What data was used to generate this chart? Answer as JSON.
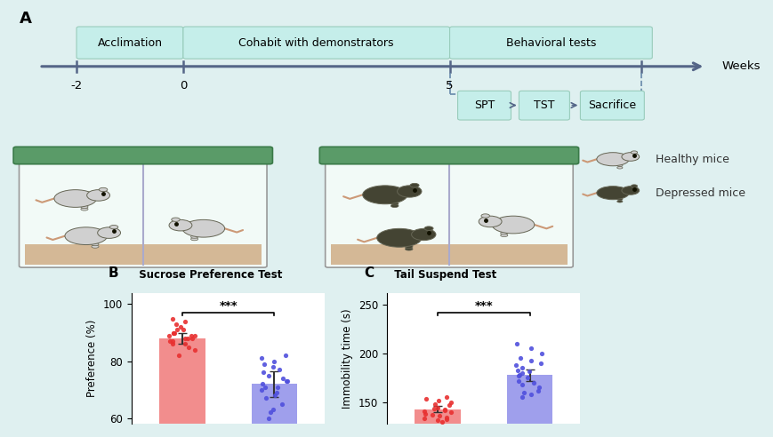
{
  "background_color": "#dff0f0",
  "panel_label_A": "A",
  "panel_label_B": "B",
  "panel_label_C": "C",
  "timeline_end_label": "Weeks",
  "sub_sequence": [
    "SPT",
    "TST",
    "Sacrifice"
  ],
  "legend_healthy": "Healthy mice",
  "legend_depressed": "Depressed mice",
  "spt_title": "Sucrose Preference Test",
  "tst_title": "Tail Suspend Test",
  "spt_ylabel": "Preference (%)",
  "tst_ylabel": "Immobility time (s)",
  "spt_red_mean": 88.0,
  "spt_red_err": 2.0,
  "spt_blue_mean": 72.0,
  "spt_blue_err": 4.5,
  "spt_ylim": [
    58,
    104
  ],
  "spt_yticks": [
    60,
    80,
    100
  ],
  "tst_red_mean": 143.0,
  "tst_red_err": 3.0,
  "tst_blue_mean": 178.0,
  "tst_blue_err": 6.0,
  "tst_ylim": [
    128,
    262
  ],
  "tst_yticks": [
    150,
    200,
    250
  ],
  "box_color_segment": "#c5eeea",
  "significance": "***",
  "red_color": "#e83030",
  "blue_color": "#5050dd",
  "bar_alpha": 0.55,
  "spt_red_dots": [
    82,
    84,
    85,
    86,
    86,
    87,
    87,
    88,
    88,
    88,
    89,
    89,
    89,
    90,
    90,
    90,
    91,
    91,
    92,
    93,
    94,
    95
  ],
  "spt_blue_dots": [
    60,
    62,
    63,
    65,
    67,
    68,
    69,
    70,
    71,
    71,
    72,
    73,
    73,
    74,
    75,
    76,
    77,
    78,
    79,
    80,
    81,
    82
  ],
  "tst_red_dots": [
    130,
    132,
    133,
    134,
    135,
    136,
    137,
    138,
    140,
    141,
    142,
    143,
    144,
    145,
    147,
    148,
    150,
    152,
    154,
    155
  ],
  "tst_blue_dots": [
    155,
    158,
    160,
    162,
    165,
    168,
    170,
    172,
    175,
    177,
    178,
    180,
    182,
    183,
    185,
    188,
    190,
    193,
    195,
    200,
    205,
    210
  ],
  "cage_lid_color": "#5a9b68",
  "cage_lid_edge": "#3a7a48",
  "cage_body_color": "#f2faf7",
  "cage_sand_color": "#d4b896",
  "cage_edge_color": "#999999",
  "cage_divider_color": "#aaaacc",
  "label_green": "#4aaa6e",
  "mouse_light": "#d0d0d0",
  "mouse_dark": "#444433",
  "mouse_tail": "#cc9977",
  "timeline_color": "#556688",
  "arrow_color": "#556688",
  "dashed_color": "#6688aa"
}
